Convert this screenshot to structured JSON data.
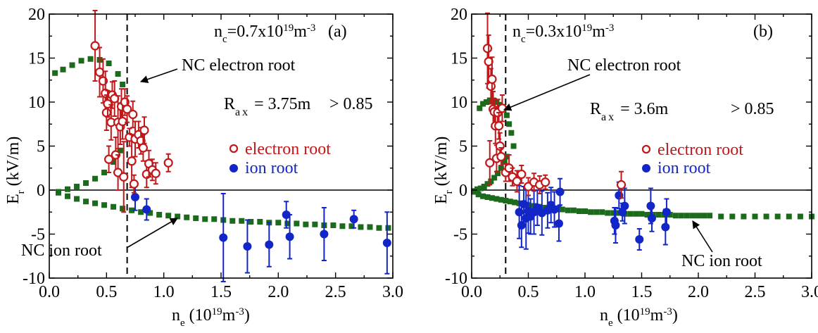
{
  "colors": {
    "electron": "#c0181b",
    "ion": "#1226c8",
    "nc": "#1c6a1c"
  },
  "chart_data": [
    {
      "type": "scatter",
      "panel_label": "(a)",
      "xlabel_main": "n",
      "xlabel_sub": "e",
      "xlabel_tail": " (10",
      "xlabel_exp": "19",
      "xlabel_unit": "m",
      "xlabel_unit_exp": "-3",
      "xlabel_close": ")",
      "ylabel_main": "E",
      "ylabel_sub": "r",
      "ylabel_tail": " (kV/m)",
      "xlim": [
        0,
        3.0
      ],
      "ylim": [
        -10,
        20
      ],
      "xticks": [
        0.0,
        0.5,
        1.0,
        1.5,
        2.0,
        2.5,
        3.0
      ],
      "xtick_labels": [
        "0.0",
        "0.5",
        "1.0",
        "1.5",
        "2.0",
        "2.5",
        "3.0"
      ],
      "yticks": [
        -10,
        -5,
        0,
        5,
        10,
        15,
        20
      ],
      "ytick_labels": [
        "-10",
        "-5",
        "0",
        "5",
        "10",
        "15",
        "20"
      ],
      "nc_value": 0.68,
      "nc_label_pre": "n",
      "nc_label_sub": "c",
      "nc_label_mid": "=0.7x10",
      "nc_label_exp": "19",
      "nc_label_unit": "m",
      "nc_label_unit_exp": "-3",
      "rax_pre": "R",
      "rax_sub": "ax",
      "rax_rest": " = 3.75m",
      "rax_gt": "> 0.85",
      "legend": [
        "electron root",
        "ion root"
      ],
      "ann_electron": "NC electron root",
      "ann_ion": "NC ion root",
      "nc_electron_root": [
        {
          "x": 0.05,
          "y": 13.3
        },
        {
          "x": 0.12,
          "y": 13.7
        },
        {
          "x": 0.2,
          "y": 14.2
        },
        {
          "x": 0.28,
          "y": 14.7
        },
        {
          "x": 0.36,
          "y": 14.9
        },
        {
          "x": 0.44,
          "y": 14.8
        },
        {
          "x": 0.52,
          "y": 14.4
        },
        {
          "x": 0.6,
          "y": 13.2
        },
        {
          "x": 0.64,
          "y": 12.0
        }
      ],
      "nc_unstable_root": [
        {
          "x": 0.08,
          "y": -0.2
        },
        {
          "x": 0.16,
          "y": 0.1
        },
        {
          "x": 0.24,
          "y": 0.4
        },
        {
          "x": 0.32,
          "y": 0.8
        },
        {
          "x": 0.4,
          "y": 1.3
        },
        {
          "x": 0.48,
          "y": 2.0
        },
        {
          "x": 0.56,
          "y": 3.2
        },
        {
          "x": 0.62,
          "y": 4.5
        }
      ],
      "nc_ion_root": [
        {
          "x": 0.08,
          "y": -0.3
        },
        {
          "x": 0.16,
          "y": -0.7
        },
        {
          "x": 0.24,
          "y": -1.0
        },
        {
          "x": 0.32,
          "y": -1.3
        },
        {
          "x": 0.4,
          "y": -1.5
        },
        {
          "x": 0.48,
          "y": -1.7
        },
        {
          "x": 0.56,
          "y": -1.9
        },
        {
          "x": 0.64,
          "y": -2.1
        },
        {
          "x": 0.72,
          "y": -2.3
        },
        {
          "x": 0.8,
          "y": -2.5
        },
        {
          "x": 0.88,
          "y": -2.6
        },
        {
          "x": 0.96,
          "y": -2.8
        },
        {
          "x": 1.04,
          "y": -2.9
        },
        {
          "x": 1.12,
          "y": -3.0
        },
        {
          "x": 1.2,
          "y": -3.1
        },
        {
          "x": 1.28,
          "y": -3.2
        },
        {
          "x": 1.36,
          "y": -3.3
        },
        {
          "x": 1.44,
          "y": -3.3
        },
        {
          "x": 1.52,
          "y": -3.4
        },
        {
          "x": 1.6,
          "y": -3.5
        },
        {
          "x": 1.68,
          "y": -3.5
        },
        {
          "x": 1.76,
          "y": -3.6
        },
        {
          "x": 1.84,
          "y": -3.6
        },
        {
          "x": 1.92,
          "y": -3.7
        },
        {
          "x": 2.0,
          "y": -3.7
        },
        {
          "x": 2.08,
          "y": -3.8
        },
        {
          "x": 2.16,
          "y": -3.8
        },
        {
          "x": 2.24,
          "y": -3.9
        },
        {
          "x": 2.32,
          "y": -3.9
        },
        {
          "x": 2.4,
          "y": -4.0
        },
        {
          "x": 2.48,
          "y": -4.0
        },
        {
          "x": 2.56,
          "y": -4.1
        },
        {
          "x": 2.64,
          "y": -4.1
        },
        {
          "x": 2.72,
          "y": -4.2
        },
        {
          "x": 2.8,
          "y": -4.2
        },
        {
          "x": 2.88,
          "y": -4.3
        },
        {
          "x": 2.96,
          "y": -4.3
        }
      ],
      "electron_root": [
        {
          "x": 0.4,
          "y": 16.4,
          "err": 4.0
        },
        {
          "x": 0.44,
          "y": 13.4,
          "err": 2.8
        },
        {
          "x": 0.47,
          "y": 12.4,
          "err": 2.5
        },
        {
          "x": 0.49,
          "y": 11.0,
          "err": 2.5
        },
        {
          "x": 0.5,
          "y": 8.8,
          "err": 2.0
        },
        {
          "x": 0.51,
          "y": 9.8,
          "err": 1.5
        },
        {
          "x": 0.52,
          "y": 3.5,
          "err": 1.5
        },
        {
          "x": 0.54,
          "y": 7.7,
          "err": 2.0
        },
        {
          "x": 0.55,
          "y": 10.8,
          "err": 1.5
        },
        {
          "x": 0.57,
          "y": 10.4,
          "err": 2.0
        },
        {
          "x": 0.58,
          "y": 4.0,
          "err": 2.0
        },
        {
          "x": 0.6,
          "y": 7.7,
          "err": 3.0
        },
        {
          "x": 0.6,
          "y": 2.0,
          "err": 2.0
        },
        {
          "x": 0.62,
          "y": 7.2,
          "err": 2.0
        },
        {
          "x": 0.63,
          "y": 9.5,
          "err": 2.0
        },
        {
          "x": 0.64,
          "y": 7.8,
          "err": 2.0
        },
        {
          "x": 0.65,
          "y": 1.5,
          "err": 4.0
        },
        {
          "x": 0.66,
          "y": 10.0,
          "err": 1.5
        },
        {
          "x": 0.68,
          "y": 9.2,
          "err": 1.5
        },
        {
          "x": 0.7,
          "y": 6.0,
          "err": 1.0
        },
        {
          "x": 0.72,
          "y": 3.3,
          "err": 3.0
        },
        {
          "x": 0.73,
          "y": 8.6,
          "err": 1.5
        },
        {
          "x": 0.74,
          "y": 0.7,
          "err": 1.0
        },
        {
          "x": 0.75,
          "y": 5.8,
          "err": 2.0
        },
        {
          "x": 0.78,
          "y": 6.3,
          "err": 1.5
        },
        {
          "x": 0.8,
          "y": 5.6,
          "err": 1.5
        },
        {
          "x": 0.82,
          "y": 4.8,
          "err": 1.5
        },
        {
          "x": 0.83,
          "y": 6.8,
          "err": 1.5
        },
        {
          "x": 0.85,
          "y": 1.8,
          "err": 1.5
        },
        {
          "x": 0.87,
          "y": 3.0,
          "err": 1.5
        },
        {
          "x": 0.9,
          "y": 2.3,
          "err": 1.2
        },
        {
          "x": 0.93,
          "y": 1.9,
          "err": 1.2
        },
        {
          "x": 1.04,
          "y": 3.1,
          "err": 1.0
        }
      ],
      "ion_root": [
        {
          "x": 0.75,
          "y": -0.8,
          "err": 1.5
        },
        {
          "x": 0.85,
          "y": -2.2,
          "err": 1.2
        },
        {
          "x": 1.52,
          "y": -5.4,
          "err": 5.0
        },
        {
          "x": 1.73,
          "y": -6.4,
          "err": 3.0
        },
        {
          "x": 1.92,
          "y": -6.2,
          "err": 2.5
        },
        {
          "x": 2.07,
          "y": -2.8,
          "err": 1.5
        },
        {
          "x": 2.1,
          "y": -5.3,
          "err": 2.5
        },
        {
          "x": 2.4,
          "y": -5.0,
          "err": 3.0
        },
        {
          "x": 2.66,
          "y": -3.3,
          "err": 1.0
        },
        {
          "x": 2.95,
          "y": -6.0,
          "err": 3.5
        }
      ]
    },
    {
      "type": "scatter",
      "panel_label": "(b)",
      "xlabel_main": "n",
      "xlabel_sub": "e",
      "xlabel_tail": " (10",
      "xlabel_exp": "19",
      "xlabel_unit": "m",
      "xlabel_unit_exp": "-3",
      "xlabel_close": ")",
      "ylabel_main": "E",
      "ylabel_sub": "r",
      "ylabel_tail": " (kV/m)",
      "xlim": [
        0,
        3.0
      ],
      "ylim": [
        -10,
        20
      ],
      "xticks": [
        0.0,
        0.5,
        1.0,
        1.5,
        2.0,
        2.5,
        3.0
      ],
      "xtick_labels": [
        "0.0",
        "0.5",
        "1.0",
        "1.5",
        "2.0",
        "2.5",
        "3.0"
      ],
      "yticks": [
        -10,
        -5,
        0,
        5,
        10,
        15,
        20
      ],
      "ytick_labels": [
        "-10",
        "-5",
        "0",
        "5",
        "10",
        "15",
        "20"
      ],
      "nc_value": 0.3,
      "nc_label_pre": "n",
      "nc_label_sub": "c",
      "nc_label_mid": "=0.3x10",
      "nc_label_exp": "19",
      "nc_label_unit": "m",
      "nc_label_unit_exp": "-3",
      "rax_pre": "R",
      "rax_sub": "ax",
      "rax_rest": " = 3.6m",
      "rax_gt": "> 0.85",
      "legend": [
        "electron root",
        "ion root"
      ],
      "ann_electron": "NC electron root",
      "ann_ion": "NC ion root",
      "nc_electron_root": [
        {
          "x": 0.07,
          "y": 9.3
        },
        {
          "x": 0.1,
          "y": 9.8
        },
        {
          "x": 0.13,
          "y": 10.0
        },
        {
          "x": 0.16,
          "y": 10.2
        },
        {
          "x": 0.19,
          "y": 10.2
        },
        {
          "x": 0.22,
          "y": 10.0
        },
        {
          "x": 0.25,
          "y": 9.7
        },
        {
          "x": 0.28,
          "y": 9.2
        },
        {
          "x": 0.31,
          "y": 8.5
        },
        {
          "x": 0.33,
          "y": 7.5
        },
        {
          "x": 0.35,
          "y": 6.5
        },
        {
          "x": 0.37,
          "y": 5.0
        }
      ],
      "nc_unstable_root": [
        {
          "x": 0.02,
          "y": -0.1
        },
        {
          "x": 0.05,
          "y": 0.1
        },
        {
          "x": 0.08,
          "y": 0.2
        },
        {
          "x": 0.11,
          "y": 0.4
        },
        {
          "x": 0.14,
          "y": 0.7
        },
        {
          "x": 0.17,
          "y": 1.0
        },
        {
          "x": 0.2,
          "y": 1.4
        },
        {
          "x": 0.23,
          "y": 1.9
        },
        {
          "x": 0.26,
          "y": 2.5
        },
        {
          "x": 0.29,
          "y": 3.2
        },
        {
          "x": 0.31,
          "y": 3.8
        }
      ],
      "nc_ion_root": [
        {
          "x": 0.02,
          "y": -0.2
        },
        {
          "x": 0.06,
          "y": -0.5
        },
        {
          "x": 0.1,
          "y": -0.7
        },
        {
          "x": 0.14,
          "y": -0.8
        },
        {
          "x": 0.18,
          "y": -0.9
        },
        {
          "x": 0.22,
          "y": -1.0
        },
        {
          "x": 0.26,
          "y": -1.1
        },
        {
          "x": 0.3,
          "y": -1.2
        },
        {
          "x": 0.34,
          "y": -1.3
        },
        {
          "x": 0.38,
          "y": -1.4
        },
        {
          "x": 0.42,
          "y": -1.5
        },
        {
          "x": 0.46,
          "y": -1.6
        },
        {
          "x": 0.5,
          "y": -1.7
        },
        {
          "x": 0.55,
          "y": -1.8
        },
        {
          "x": 0.6,
          "y": -1.9
        },
        {
          "x": 0.65,
          "y": -2.0
        },
        {
          "x": 0.7,
          "y": -2.1
        },
        {
          "x": 0.75,
          "y": -2.2
        },
        {
          "x": 0.8,
          "y": -2.2
        },
        {
          "x": 0.85,
          "y": -2.3
        },
        {
          "x": 0.9,
          "y": -2.3
        },
        {
          "x": 0.95,
          "y": -2.4
        },
        {
          "x": 1.0,
          "y": -2.4
        },
        {
          "x": 1.05,
          "y": -2.5
        },
        {
          "x": 1.1,
          "y": -2.5
        },
        {
          "x": 1.15,
          "y": -2.5
        },
        {
          "x": 1.2,
          "y": -2.6
        },
        {
          "x": 1.25,
          "y": -2.6
        },
        {
          "x": 1.3,
          "y": -2.6
        },
        {
          "x": 1.35,
          "y": -2.7
        },
        {
          "x": 1.4,
          "y": -2.7
        },
        {
          "x": 1.45,
          "y": -2.7
        },
        {
          "x": 1.5,
          "y": -2.7
        },
        {
          "x": 1.55,
          "y": -2.8
        },
        {
          "x": 1.6,
          "y": -2.8
        },
        {
          "x": 1.65,
          "y": -2.8
        },
        {
          "x": 1.7,
          "y": -2.8
        },
        {
          "x": 1.75,
          "y": -2.8
        },
        {
          "x": 1.8,
          "y": -2.9
        },
        {
          "x": 1.85,
          "y": -2.9
        },
        {
          "x": 1.9,
          "y": -2.9
        },
        {
          "x": 1.95,
          "y": -2.9
        },
        {
          "x": 2.0,
          "y": -2.9
        },
        {
          "x": 2.05,
          "y": -2.9
        },
        {
          "x": 2.1,
          "y": -2.9
        },
        {
          "x": 2.2,
          "y": -3.0
        },
        {
          "x": 2.3,
          "y": -3.0
        },
        {
          "x": 2.4,
          "y": -3.0
        },
        {
          "x": 2.5,
          "y": -3.0
        },
        {
          "x": 2.6,
          "y": -3.0
        },
        {
          "x": 2.7,
          "y": -3.0
        },
        {
          "x": 2.8,
          "y": -3.0
        },
        {
          "x": 2.9,
          "y": -3.0
        },
        {
          "x": 3.0,
          "y": -3.0
        }
      ],
      "electron_root": [
        {
          "x": 0.14,
          "y": 16.1,
          "err": 4.0
        },
        {
          "x": 0.15,
          "y": 14.6,
          "err": 3.0
        },
        {
          "x": 0.16,
          "y": 3.1,
          "err": 2.5
        },
        {
          "x": 0.17,
          "y": 11.8,
          "err": 2.0
        },
        {
          "x": 0.18,
          "y": 12.6,
          "err": 2.5
        },
        {
          "x": 0.19,
          "y": 9.2,
          "err": 2.0
        },
        {
          "x": 0.2,
          "y": 8.9,
          "err": 1.5
        },
        {
          "x": 0.21,
          "y": 7.3,
          "err": 2.0
        },
        {
          "x": 0.22,
          "y": 3.6,
          "err": 1.5
        },
        {
          "x": 0.23,
          "y": 8.8,
          "err": 1.5
        },
        {
          "x": 0.24,
          "y": 7.3,
          "err": 1.5
        },
        {
          "x": 0.25,
          "y": 5.0,
          "err": 1.5
        },
        {
          "x": 0.26,
          "y": 3.8,
          "err": 1.0
        },
        {
          "x": 0.27,
          "y": 9.3,
          "err": 1.5
        },
        {
          "x": 0.3,
          "y": 2.0,
          "err": 1.0
        },
        {
          "x": 0.33,
          "y": 2.5,
          "err": 1.5
        },
        {
          "x": 0.36,
          "y": 1.5,
          "err": 1.0
        },
        {
          "x": 0.4,
          "y": 1.0,
          "err": 1.2
        },
        {
          "x": 0.44,
          "y": 1.8,
          "err": 1.0
        },
        {
          "x": 0.5,
          "y": 0.4,
          "err": 1.0
        },
        {
          "x": 0.55,
          "y": 0.9,
          "err": 1.0
        },
        {
          "x": 0.6,
          "y": 0.6,
          "err": 1.0
        },
        {
          "x": 0.65,
          "y": 0.9,
          "err": 0.8
        },
        {
          "x": 1.32,
          "y": 0.6,
          "err": 1.5
        }
      ],
      "ion_root": [
        {
          "x": 0.42,
          "y": -2.5,
          "err": 3.0
        },
        {
          "x": 0.44,
          "y": -4.0,
          "err": 2.5
        },
        {
          "x": 0.46,
          "y": -1.6,
          "err": 2.0
        },
        {
          "x": 0.48,
          "y": -3.2,
          "err": 3.5
        },
        {
          "x": 0.5,
          "y": -2.4,
          "err": 2.5
        },
        {
          "x": 0.52,
          "y": -3.0,
          "err": 2.0
        },
        {
          "x": 0.55,
          "y": -2.5,
          "err": 2.5
        },
        {
          "x": 0.58,
          "y": -2.0,
          "err": 2.0
        },
        {
          "x": 0.62,
          "y": -2.6,
          "err": 2.5
        },
        {
          "x": 0.67,
          "y": -2.3,
          "err": 2.0
        },
        {
          "x": 0.7,
          "y": -1.7,
          "err": 2.0
        },
        {
          "x": 0.73,
          "y": -2.2,
          "err": 2.0
        },
        {
          "x": 0.77,
          "y": -3.8,
          "err": 2.0
        },
        {
          "x": 0.78,
          "y": -0.2,
          "err": 1.5
        },
        {
          "x": 1.26,
          "y": -3.5,
          "err": 1.5
        },
        {
          "x": 1.27,
          "y": -4.0,
          "err": 2.0
        },
        {
          "x": 1.3,
          "y": -0.6,
          "err": 1.5
        },
        {
          "x": 1.33,
          "y": -2.5,
          "err": 1.0
        },
        {
          "x": 1.35,
          "y": -1.8,
          "err": 2.0
        },
        {
          "x": 1.48,
          "y": -5.6,
          "err": 1.2
        },
        {
          "x": 1.58,
          "y": -1.8,
          "err": 2.0
        },
        {
          "x": 1.59,
          "y": -3.2,
          "err": 1.5
        },
        {
          "x": 1.71,
          "y": -4.2,
          "err": 2.0
        },
        {
          "x": 1.72,
          "y": -2.5,
          "err": 1.5
        }
      ]
    }
  ]
}
